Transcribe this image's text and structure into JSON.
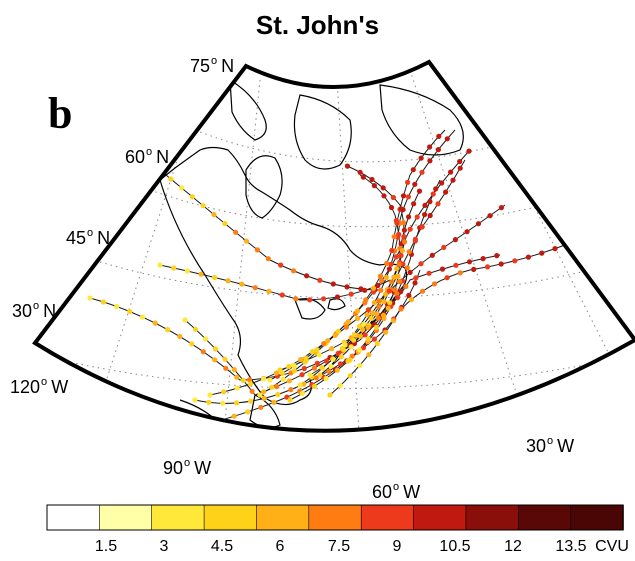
{
  "title": "St. John's",
  "panel_label": "b",
  "latitude_labels": [
    {
      "value": "75",
      "hemisphere": "N"
    },
    {
      "value": "60",
      "hemisphere": "N"
    },
    {
      "value": "45",
      "hemisphere": "N"
    },
    {
      "value": "30",
      "hemisphere": "N"
    }
  ],
  "longitude_labels": [
    {
      "value": "120",
      "hemisphere": "W"
    },
    {
      "value": "90",
      "hemisphere": "W"
    },
    {
      "value": "60",
      "hemisphere": "W"
    },
    {
      "value": "30",
      "hemisphere": "W"
    }
  ],
  "colorbar": {
    "ticks": [
      "1.5",
      "3",
      "4.5",
      "6",
      "7.5",
      "9",
      "10.5",
      "12",
      "13.5"
    ],
    "unit": "CVU",
    "colors": [
      "#ffffff",
      "#ffffa8",
      "#ffe83a",
      "#ffd21a",
      "#ffb017",
      "#ff7c12",
      "#ee3a1c",
      "#c01a10",
      "#8a0f0a",
      "#5a0707",
      "#4a0505"
    ]
  },
  "map": {
    "track_dot_colors": [
      "#ffe83a",
      "#ffd21a",
      "#ffb017",
      "#ff7c12",
      "#ee3a1c",
      "#c01a10"
    ],
    "coastline_color": "#000000",
    "graticule_color": "#888888"
  }
}
